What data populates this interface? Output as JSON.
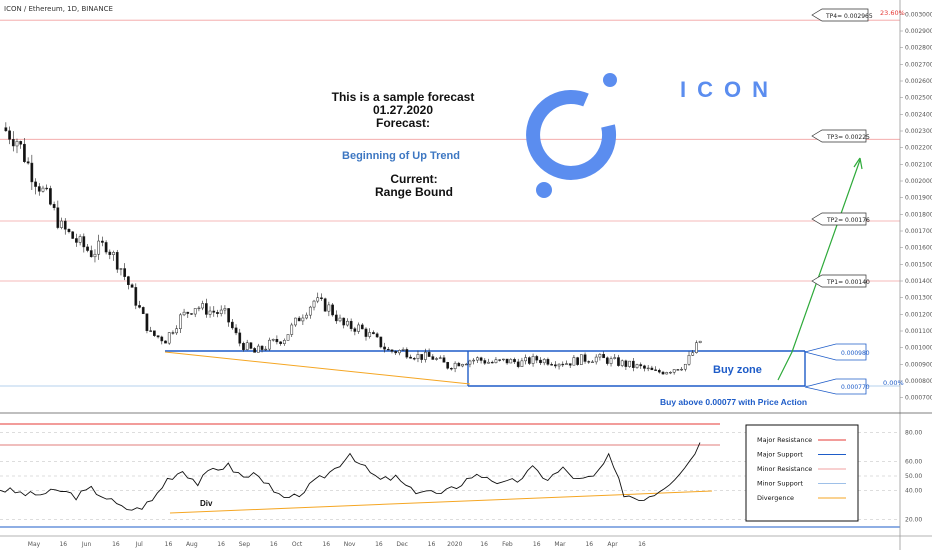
{
  "header": {
    "symbol": "ICON / Ethereum, 1D, BINANCE"
  },
  "forecast": {
    "line1": "This is a sample forecast",
    "line2": "01.27.2020",
    "line3": "Forecast:",
    "trend": "Beginning of Up Trend",
    "current_label": "Current:",
    "current_value": "Range Bound"
  },
  "brand": {
    "name": "ICON",
    "color": "#5b8def"
  },
  "targets": {
    "tp4": "TP4= 0.002965",
    "tp3": "TP3= 0.00225",
    "tp2": "TP2= 0.00176",
    "tp1": "TP1= 0.00140",
    "box_top": "0.000980",
    "box_bottom": "0.000770",
    "fib_top": "23.60%",
    "fib_bottom": "0.00%"
  },
  "zone": {
    "label": "Buy zone",
    "note": "Buy above 0.00077 with Price Action"
  },
  "indicator": {
    "ticks": [
      "80.00",
      "60.00",
      "50.00",
      "40.00",
      "20.00"
    ],
    "div_label": "Div"
  },
  "legend": {
    "items": [
      {
        "label": "Major Resistance",
        "color": "#e53935"
      },
      {
        "label": "Major Support",
        "color": "#1e5cc8"
      },
      {
        "label": "Minor Resistance",
        "color": "#f2a0a0"
      },
      {
        "label": "Minor Support",
        "color": "#9ec0e8"
      },
      {
        "label": "Divergence",
        "color": "#f5a623"
      }
    ]
  },
  "colors": {
    "resistance": "#e53935",
    "support": "#1e5cc8",
    "minor_resistance": "#f2a0a0",
    "divergence": "#f5a623",
    "arrow": "#2eaa3a",
    "candle_up": "#ffffff",
    "candle_down": "#111111"
  },
  "chart_data": {
    "type": "candlestick",
    "symbol": "ICON / Ethereum, 1D, BINANCE",
    "x_ticks": [
      "May",
      "16",
      "Jun",
      "16",
      "Jul",
      "16",
      "Aug",
      "16",
      "Sep",
      "16",
      "Oct",
      "16",
      "Nov",
      "16",
      "Dec",
      "16",
      "2020",
      "16",
      "Feb",
      "16",
      "Mar",
      "16",
      "Apr",
      "16"
    ],
    "y_ticks": [
      "0.003000",
      "0.002900",
      "0.002800",
      "0.002700",
      "0.002600",
      "0.002500",
      "0.002400",
      "0.002300",
      "0.002200",
      "0.002100",
      "0.002000",
      "0.001900",
      "0.001800",
      "0.001700",
      "0.001600",
      "0.001500",
      "0.001400",
      "0.001300",
      "0.001200",
      "0.001100",
      "0.001000",
      "0.000900",
      "0.000800",
      "0.000700"
    ],
    "ylim": [
      0.00065,
      0.00305
    ],
    "price_path": [
      0.00232,
      0.00225,
      0.00205,
      0.0019,
      0.00172,
      0.00164,
      0.00157,
      0.00162,
      0.00148,
      0.00128,
      0.00108,
      0.00105,
      0.00118,
      0.00125,
      0.00122,
      0.0012,
      0.00103,
      0.00097,
      0.00102,
      0.00106,
      0.00118,
      0.00128,
      0.00124,
      0.00113,
      0.00112,
      0.00106,
      0.00098,
      0.00098,
      0.00095,
      0.00094,
      0.00089,
      0.00092,
      0.00093,
      0.00091,
      0.00092,
      0.00091,
      0.00093,
      0.00092,
      0.00091,
      0.00093,
      0.00094,
      0.00092,
      0.0009,
      0.00088,
      0.00085,
      0.00087,
      0.0009,
      0.00104
    ],
    "levels": {
      "tp4": 0.002965,
      "tp3": 0.00225,
      "tp2": 0.00176,
      "tp1": 0.0014,
      "box_top": 0.00098,
      "box_bottom": 0.00077
    },
    "indicator_ticks": [
      80,
      60,
      50,
      40,
      20
    ],
    "indicator_path": [
      41,
      39,
      37,
      38,
      40,
      36,
      41,
      35,
      28,
      27,
      33,
      48,
      54,
      45,
      55,
      57,
      49,
      52,
      38,
      33,
      40,
      48,
      55,
      66,
      55,
      47,
      49,
      40,
      40,
      37,
      43,
      50,
      50,
      44,
      47,
      55,
      48,
      55,
      47,
      49,
      63,
      38,
      34,
      38,
      46,
      56,
      73
    ]
  }
}
